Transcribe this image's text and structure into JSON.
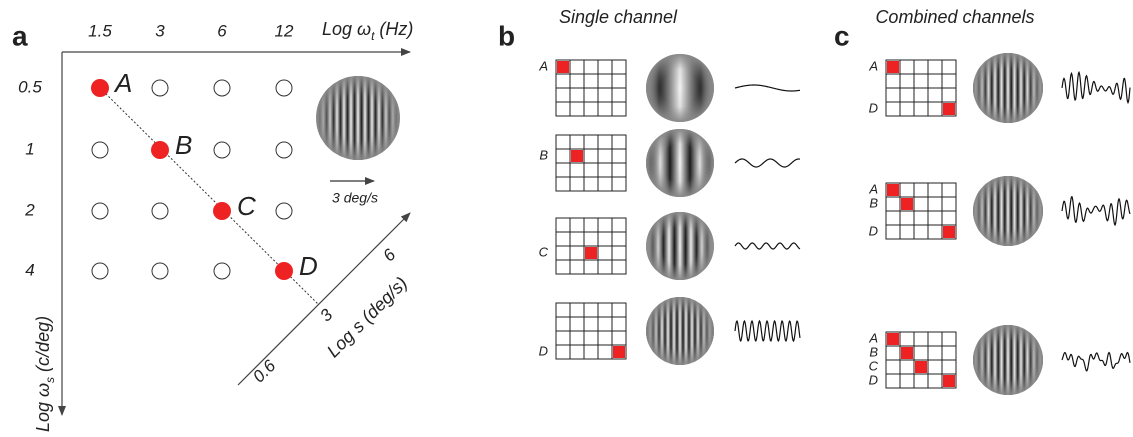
{
  "panel_a": {
    "label": "a",
    "x_axis": {
      "title": {
        "text": "Log ω",
        "subscript": "t",
        "unit": "(Hz)"
      },
      "ticks": [
        "1.5",
        "3",
        "6",
        "12"
      ]
    },
    "y_axis": {
      "title": {
        "text": "Log ω",
        "subscript": "s",
        "unit": "(c/deg)"
      },
      "ticks": [
        "0.5",
        "1",
        "2",
        "4"
      ]
    },
    "points": [
      "A",
      "B",
      "C",
      "D"
    ],
    "speed_label": "3 deg/s",
    "diagonal_axis": {
      "title": "Log s (deg/s)",
      "ticks": [
        "0.6",
        "3",
        "6"
      ]
    }
  },
  "panel_b": {
    "label": "b",
    "title": "Single channel",
    "rows": [
      {
        "labels": [
          "A"
        ]
      },
      {
        "labels": [
          "B"
        ]
      },
      {
        "labels": [
          "C"
        ]
      },
      {
        "labels": [
          "D"
        ]
      }
    ]
  },
  "panel_c": {
    "label": "c",
    "title": "Combined channels",
    "rows": [
      {
        "labels": [
          "A",
          "D"
        ]
      },
      {
        "labels": [
          "A",
          "B",
          "D"
        ]
      },
      {
        "labels": [
          "A",
          "B",
          "C",
          "D"
        ]
      }
    ]
  }
}
